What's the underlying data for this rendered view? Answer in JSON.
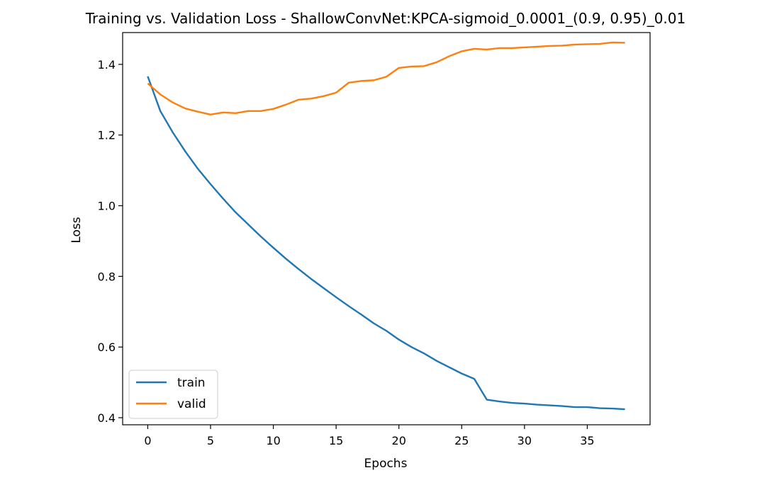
{
  "chart_data": {
    "type": "line",
    "title": "Training vs. Validation Loss - ShallowConvNet:KPCA-sigmoid_0.0001_(0.9, 0.95)_0.01",
    "xlabel": "Epochs",
    "ylabel": "Loss",
    "xlim": [
      -2,
      40
    ],
    "ylim": [
      0.38,
      1.49
    ],
    "xticks": [
      0,
      5,
      10,
      15,
      20,
      25,
      30,
      35
    ],
    "xtick_labels": [
      "0",
      "5",
      "10",
      "15",
      "20",
      "25",
      "30",
      "35"
    ],
    "yticks": [
      0.4,
      0.6,
      0.8,
      1.0,
      1.2,
      1.4
    ],
    "ytick_labels": [
      "0.4",
      "0.6",
      "0.8",
      "1.0",
      "1.2",
      "1.4"
    ],
    "grid": false,
    "legend_position": "lower-left",
    "x": [
      0,
      1,
      2,
      3,
      4,
      5,
      6,
      7,
      8,
      9,
      10,
      11,
      12,
      13,
      14,
      15,
      16,
      17,
      18,
      19,
      20,
      21,
      22,
      23,
      24,
      25,
      26,
      27,
      28,
      29,
      30,
      31,
      32,
      33,
      34,
      35,
      36,
      37,
      38
    ],
    "series": [
      {
        "name": "train",
        "color": "#1f77b4",
        "values": [
          1.366,
          1.268,
          1.207,
          1.153,
          1.104,
          1.061,
          1.02,
          0.981,
          0.947,
          0.913,
          0.881,
          0.85,
          0.821,
          0.793,
          0.767,
          0.741,
          0.716,
          0.692,
          0.667,
          0.646,
          0.621,
          0.6,
          0.582,
          0.561,
          0.543,
          0.525,
          0.51,
          0.451,
          0.446,
          0.442,
          0.44,
          0.437,
          0.435,
          0.433,
          0.43,
          0.43,
          0.427,
          0.426,
          0.424
        ]
      },
      {
        "name": "valid",
        "color": "#ff7f0e",
        "values": [
          1.346,
          1.315,
          1.292,
          1.275,
          1.266,
          1.258,
          1.264,
          1.262,
          1.268,
          1.268,
          1.274,
          1.286,
          1.3,
          1.303,
          1.31,
          1.32,
          1.348,
          1.353,
          1.355,
          1.365,
          1.39,
          1.394,
          1.395,
          1.406,
          1.423,
          1.437,
          1.444,
          1.442,
          1.446,
          1.446,
          1.448,
          1.45,
          1.452,
          1.453,
          1.456,
          1.457,
          1.458,
          1.462,
          1.461
        ]
      }
    ]
  }
}
